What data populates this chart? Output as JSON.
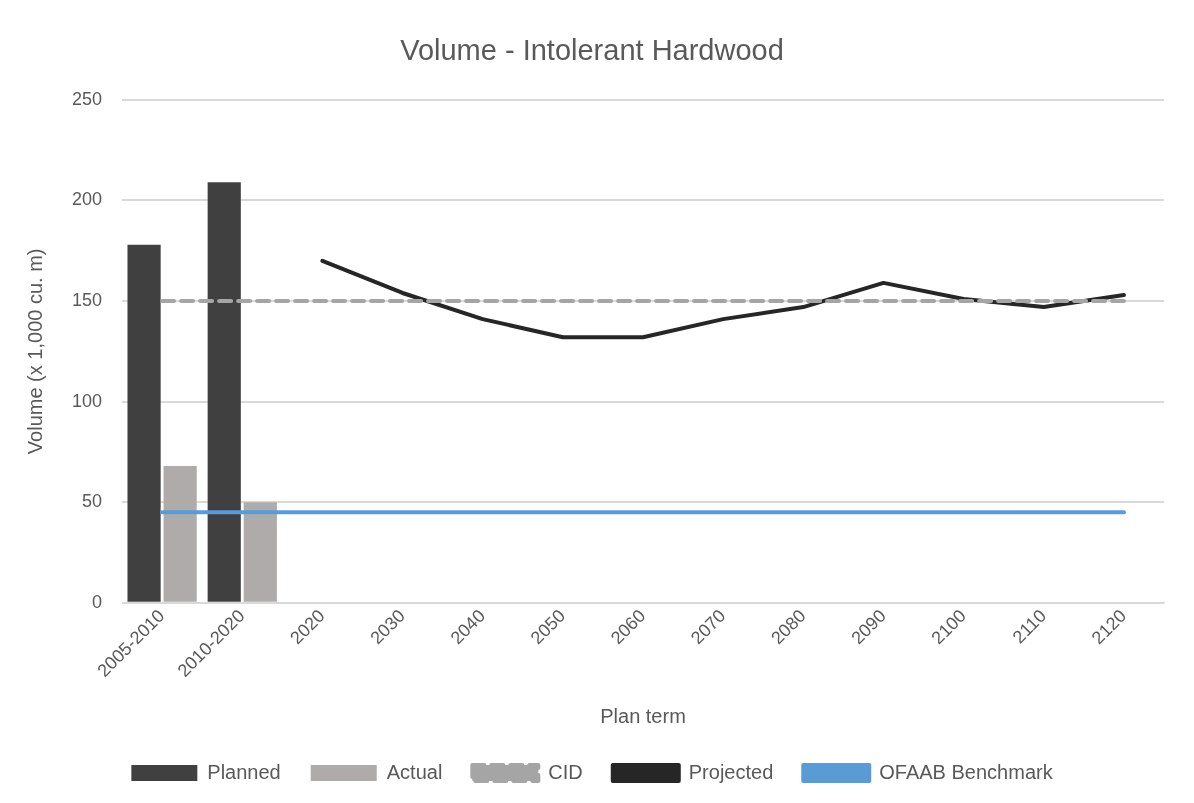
{
  "chart_data": {
    "type": "bar",
    "title": "Volume - Intolerant Hardwood",
    "xlabel": "Plan term",
    "ylabel": "Volume (x 1,000 cu. m)",
    "categories": [
      "2005-2010",
      "2010-2020",
      "2020",
      "2030",
      "2040",
      "2050",
      "2060",
      "2070",
      "2080",
      "2090",
      "2100",
      "2110",
      "2120"
    ],
    "series": [
      {
        "name": "Planned",
        "color": "#404040",
        "values": [
          178,
          209,
          null,
          null,
          null,
          null,
          null,
          null,
          null,
          null,
          null,
          null,
          null
        ]
      },
      {
        "name": "Actual",
        "color": "#afabab",
        "values": [
          68,
          50,
          null,
          null,
          null,
          null,
          null,
          null,
          null,
          null,
          null,
          null,
          null
        ]
      },
      {
        "name": "CID",
        "type": "line",
        "color": "#a5a5a5",
        "line_style": "dashed",
        "values": [
          150,
          150,
          150,
          150,
          150,
          150,
          150,
          150,
          150,
          150,
          150,
          150,
          150
        ]
      },
      {
        "name": "Projected",
        "type": "line",
        "color": "#262626",
        "line_style": "solid",
        "values": [
          null,
          null,
          170,
          154,
          141,
          132,
          132,
          141,
          147,
          159,
          151,
          147,
          153
        ]
      },
      {
        "name": "OFAAB Benchmark",
        "type": "line",
        "color": "#5b9bd5",
        "line_style": "solid",
        "values": [
          45,
          45,
          45,
          45,
          45,
          45,
          45,
          45,
          45,
          45,
          45,
          45,
          45
        ]
      }
    ],
    "ylim": [
      0,
      250
    ],
    "yticks": [
      0,
      50,
      100,
      150,
      200,
      250
    ],
    "grid": "y",
    "legend": "bottom",
    "marker": "none"
  }
}
